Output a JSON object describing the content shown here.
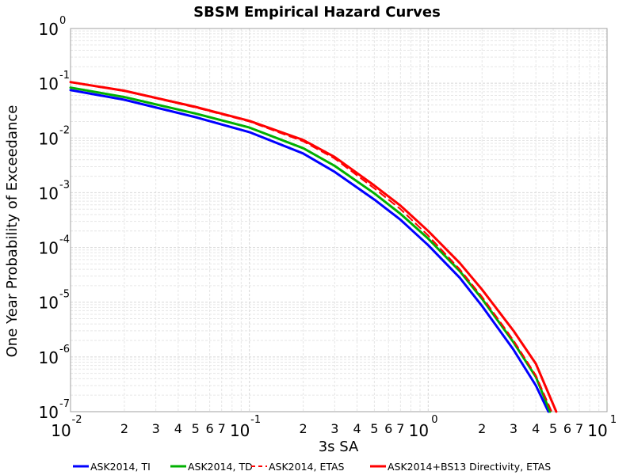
{
  "chart_data": {
    "type": "line",
    "title": "SBSM Empirical Hazard Curves",
    "xlabel": "3s SA",
    "ylabel": "One Year Probability of Exceedance",
    "x_scale": "log",
    "y_scale": "log",
    "xlim": [
      0.01,
      10
    ],
    "ylim": [
      1e-07,
      1
    ],
    "grid": true,
    "legend_position": "bottom",
    "x_major_ticks": [
      {
        "base": "10",
        "exp": "-2"
      },
      {
        "base": "10",
        "exp": "-1"
      },
      {
        "base": "10",
        "exp": "0"
      },
      {
        "base": "10",
        "exp": "1"
      }
    ],
    "y_major_ticks": [
      {
        "base": "10",
        "exp": "0"
      },
      {
        "base": "10",
        "exp": "-1"
      },
      {
        "base": "10",
        "exp": "-2"
      },
      {
        "base": "10",
        "exp": "-3"
      },
      {
        "base": "10",
        "exp": "-4"
      },
      {
        "base": "10",
        "exp": "-5"
      },
      {
        "base": "10",
        "exp": "-6"
      },
      {
        "base": "10",
        "exp": "-7"
      }
    ],
    "x_minor_labels": [
      "2",
      "3",
      "4",
      "5",
      "6",
      "7"
    ],
    "series": [
      {
        "name": "ASK2014, TI",
        "color": "#0000ff",
        "style": "solid",
        "x": [
          0.01,
          0.02,
          0.05,
          0.1,
          0.2,
          0.3,
          0.5,
          0.7,
          1.0,
          1.5,
          2.0,
          3.0,
          4.0,
          4.7
        ],
        "y": [
          0.075,
          0.05,
          0.024,
          0.0128,
          0.0052,
          0.0024,
          0.00075,
          0.00032,
          0.00011,
          2.8e-05,
          8.5e-06,
          1.35e-06,
          3e-07,
          1e-07
        ]
      },
      {
        "name": "ASK2014, TD",
        "color": "#00b000",
        "style": "solid",
        "x": [
          0.01,
          0.02,
          0.05,
          0.1,
          0.2,
          0.3,
          0.5,
          0.7,
          1.0,
          1.5,
          2.0,
          3.0,
          4.0,
          4.8
        ],
        "y": [
          0.083,
          0.056,
          0.028,
          0.0155,
          0.0065,
          0.0031,
          0.00097,
          0.00041,
          0.000145,
          3.7e-05,
          1.15e-05,
          1.85e-06,
          4.3e-07,
          1e-07
        ]
      },
      {
        "name": "ASK2014, ETAS",
        "color": "#ff0000",
        "style": "dashed",
        "x": [
          0.01,
          0.02,
          0.05,
          0.1,
          0.2,
          0.3,
          0.5,
          0.7,
          1.0,
          1.5,
          2.0,
          3.0,
          4.0,
          4.9
        ],
        "y": [
          0.104,
          0.072,
          0.036,
          0.02,
          0.0087,
          0.0042,
          0.0012,
          0.0005,
          0.000165,
          4e-05,
          1.25e-05,
          2e-06,
          4.6e-07,
          1e-07
        ]
      },
      {
        "name": "ASK2014+BS13 Directivity, ETAS",
        "color": "#ff0000",
        "style": "solid",
        "x": [
          0.01,
          0.02,
          0.05,
          0.1,
          0.2,
          0.3,
          0.5,
          0.7,
          1.0,
          1.5,
          2.0,
          3.0,
          4.0,
          5.2
        ],
        "y": [
          0.105,
          0.073,
          0.037,
          0.0205,
          0.0092,
          0.0045,
          0.00135,
          0.00058,
          0.0002,
          5.2e-05,
          1.7e-05,
          3e-06,
          7.5e-07,
          1e-07
        ]
      }
    ]
  }
}
